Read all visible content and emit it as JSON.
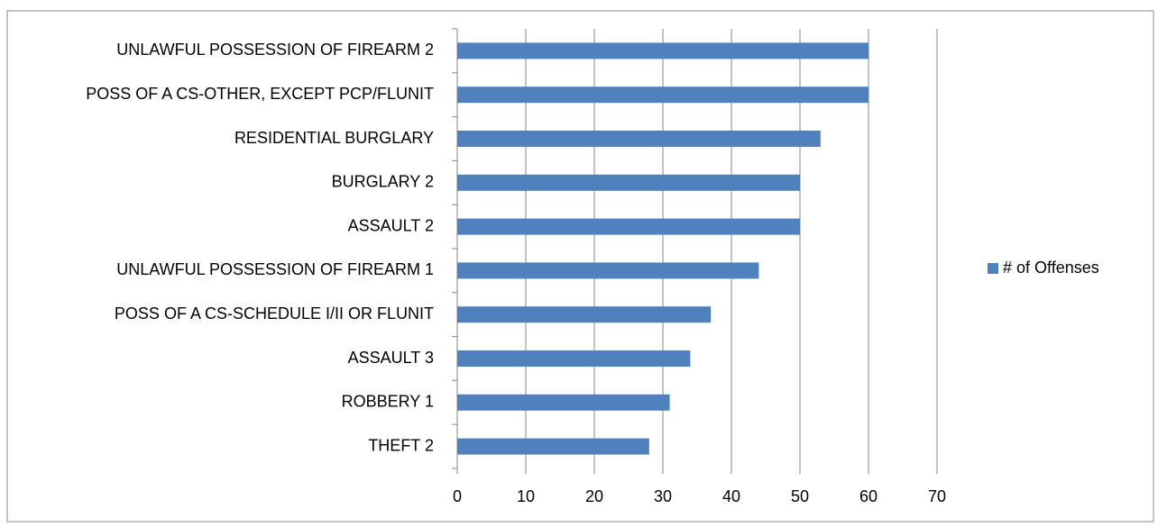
{
  "chart_data": {
    "type": "bar",
    "orientation": "horizontal",
    "categories": [
      "UNLAWFUL POSSESSION OF FIREARM 2",
      "POSS OF A CS-OTHER, EXCEPT PCP/FLUNIT",
      "RESIDENTIAL BURGLARY",
      "BURGLARY 2",
      "ASSAULT 2",
      "UNLAWFUL POSSESSION OF FIREARM 1",
      "POSS OF A CS-SCHEDULE I/II OR FLUNIT",
      "ASSAULT 3",
      "ROBBERY 1",
      "THEFT 2"
    ],
    "series": [
      {
        "name": "# of Offenses",
        "color": "#4f81bd",
        "values": [
          60,
          60,
          53,
          50,
          50,
          44,
          37,
          34,
          31,
          28
        ]
      }
    ],
    "xlim": [
      0,
      70
    ],
    "xticks": [
      0,
      10,
      20,
      30,
      40,
      50,
      60,
      70
    ],
    "grid": true,
    "legend": "right"
  }
}
